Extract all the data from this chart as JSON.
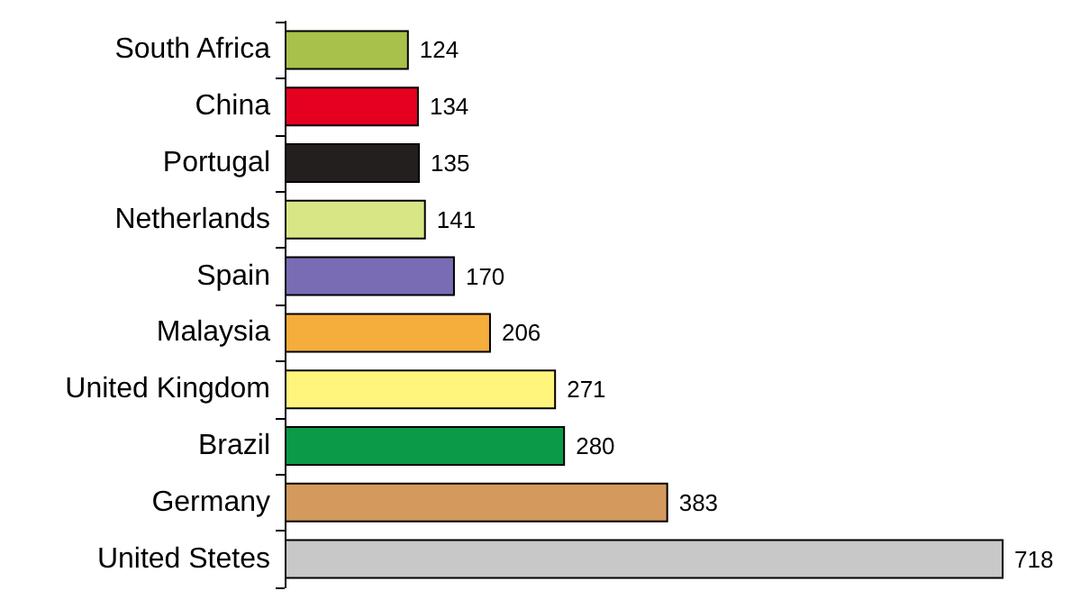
{
  "chart_data": {
    "type": "bar",
    "orientation": "horizontal",
    "categories": [
      "South Africa",
      "China",
      "Portugal",
      "Netherlands",
      "Spain",
      "Malaysia",
      "United Kingdom",
      "Brazil",
      "Germany",
      "United Stetes"
    ],
    "values": [
      124,
      134,
      135,
      141,
      170,
      206,
      271,
      280,
      383,
      718
    ],
    "colors": [
      "#a8c14a",
      "#e60020",
      "#231f1f",
      "#d9e685",
      "#7a6cb4",
      "#f5ad3c",
      "#fff47c",
      "#0a9a48",
      "#d4995c",
      "#c8c8c8"
    ],
    "data_labels": true
  }
}
